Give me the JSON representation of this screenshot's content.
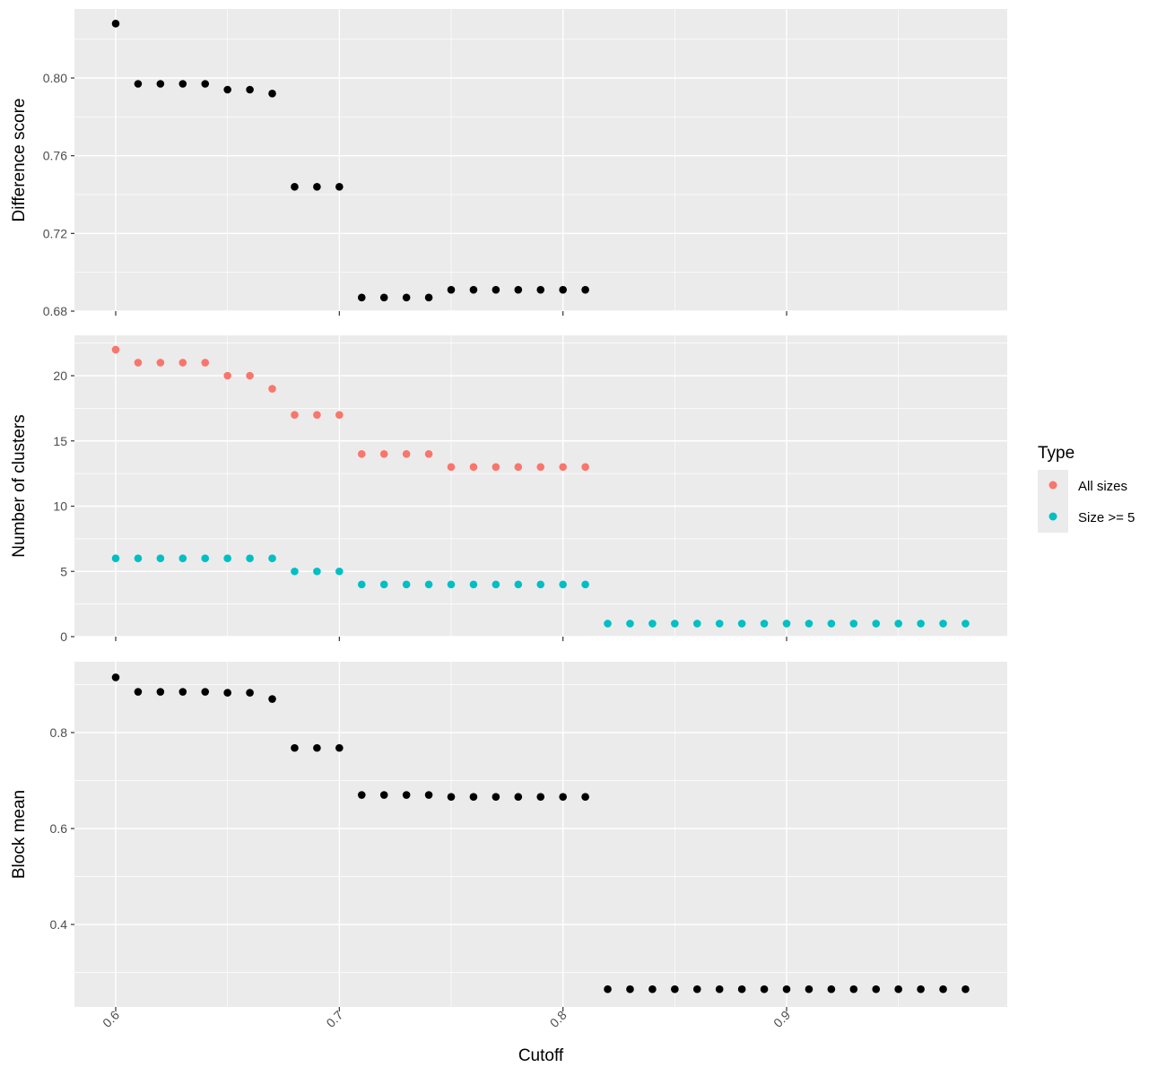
{
  "chart_data": {
    "type": "scatter",
    "x": [
      0.6,
      0.61,
      0.62,
      0.63,
      0.64,
      0.65,
      0.66,
      0.67,
      0.68,
      0.69,
      0.7,
      0.71,
      0.72,
      0.73,
      0.74,
      0.75,
      0.76,
      0.77,
      0.78,
      0.79,
      0.8,
      0.81,
      0.82,
      0.83,
      0.84,
      0.85,
      0.86,
      0.87,
      0.88,
      0.89,
      0.9,
      0.91,
      0.92,
      0.93,
      0.94,
      0.95,
      0.96,
      0.97,
      0.98
    ],
    "xlabel": "Cutoff",
    "xlim": [
      0.58,
      1.0
    ],
    "xticks": [
      0.6,
      0.7,
      0.8,
      0.9
    ],
    "xtick_labels": [
      "0.6",
      "0.7",
      "0.8",
      "0.9"
    ],
    "grid": true,
    "legend_position": "right",
    "panels": [
      {
        "ylabel": "Difference score",
        "ylim": [
          0.68,
          0.828
        ],
        "yticks": [
          0.68,
          0.72,
          0.76,
          0.8
        ],
        "ytick_labels": [
          "0.68",
          "0.72",
          "0.76",
          "0.80"
        ],
        "series": [
          {
            "color": "#000000",
            "values": [
              0.828,
              0.797,
              0.797,
              0.797,
              0.797,
              0.794,
              0.794,
              0.792,
              0.744,
              0.744,
              0.744,
              0.687,
              0.687,
              0.687,
              0.687,
              0.691,
              0.691,
              0.691,
              0.691,
              0.691,
              0.691,
              0.691
            ]
          }
        ]
      },
      {
        "ylabel": "Number of clusters",
        "ylim": [
          0,
          22
        ],
        "yticks": [
          0,
          5,
          10,
          15,
          20
        ],
        "ytick_labels": [
          "0",
          "5",
          "10",
          "15",
          "20"
        ],
        "series": [
          {
            "name": "All sizes",
            "color": "#F8766D",
            "values": [
              22,
              21,
              21,
              21,
              21,
              20,
              20,
              19,
              17,
              17,
              17,
              14,
              14,
              14,
              14,
              13,
              13,
              13,
              13,
              13,
              13,
              13
            ]
          },
          {
            "name": "Size >= 5",
            "color": "#00BFC4",
            "values": [
              6,
              6,
              6,
              6,
              6,
              6,
              6,
              6,
              5,
              5,
              5,
              4,
              4,
              4,
              4,
              4,
              4,
              4,
              4,
              4,
              4,
              4,
              1,
              1,
              1,
              1,
              1,
              1,
              1,
              1,
              1,
              1,
              1,
              1,
              1,
              1,
              1,
              1,
              1
            ]
          }
        ]
      },
      {
        "ylabel": "Block mean",
        "ylim": [
          0.265,
          0.915
        ],
        "yticks": [
          0.4,
          0.6,
          0.8
        ],
        "ytick_labels": [
          "0.4",
          "0.6",
          "0.8"
        ],
        "series": [
          {
            "color": "#000000",
            "values": [
              0.915,
              0.885,
              0.885,
              0.885,
              0.885,
              0.883,
              0.883,
              0.87,
              0.768,
              0.768,
              0.768,
              0.67,
              0.67,
              0.67,
              0.67,
              0.666,
              0.666,
              0.666,
              0.666,
              0.666,
              0.666,
              0.666,
              0.265,
              0.265,
              0.265,
              0.265,
              0.265,
              0.265,
              0.265,
              0.265,
              0.265,
              0.265,
              0.265,
              0.265,
              0.265,
              0.265,
              0.265,
              0.265,
              0.265
            ]
          }
        ]
      }
    ],
    "legend": {
      "title": "Type",
      "entries": [
        {
          "label": "All sizes",
          "color": "#F8766D"
        },
        {
          "label": "Size >= 5",
          "color": "#00BFC4"
        }
      ]
    }
  }
}
